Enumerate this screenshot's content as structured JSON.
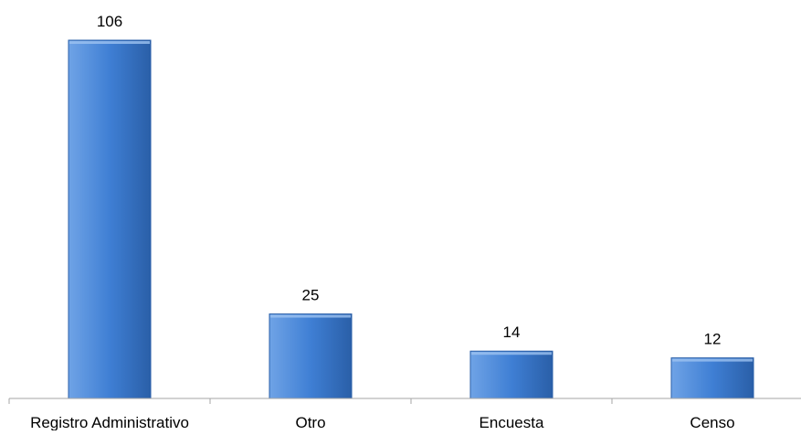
{
  "chart_data": {
    "type": "bar",
    "title": "",
    "xlabel": "",
    "ylabel": "",
    "categories": [
      "Registro Administrativo",
      "Otro",
      "Encuesta",
      "Censo"
    ],
    "values": [
      106,
      25,
      14,
      12
    ],
    "data_labels": [
      "106",
      "25",
      "14",
      "12"
    ],
    "ylim": [
      0,
      106
    ],
    "grid": false,
    "legend": "none",
    "colors": {
      "bar_light": "#6fa3e6",
      "bar_mid": "#3f7fd4",
      "bar_dark": "#2a5fa8",
      "axis": "#a6a6a6"
    }
  }
}
